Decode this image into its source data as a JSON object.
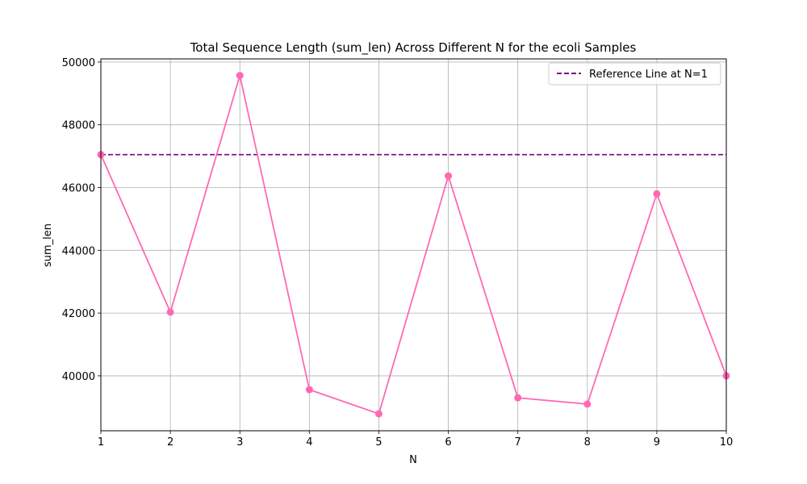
{
  "chart_data": {
    "type": "line",
    "title": "Total Sequence Length (sum_len) Across Different N for the ecoli Samples",
    "xlabel": "N",
    "ylabel": "sum_len",
    "x": [
      1,
      2,
      3,
      4,
      5,
      6,
      7,
      8,
      9,
      10
    ],
    "series": [
      {
        "values": [
          47050,
          42030,
          49570,
          39560,
          38790,
          46370,
          39300,
          39100,
          45800,
          40000
        ],
        "color": "#ff69b4",
        "marker": "circle"
      }
    ],
    "reference_line": {
      "label": "Reference Line at N=1",
      "value": 47050,
      "color": "#800080",
      "style": "dashed"
    },
    "xticks": [
      1,
      2,
      3,
      4,
      5,
      6,
      7,
      8,
      9,
      10
    ],
    "yticks": [
      40000,
      42000,
      44000,
      46000,
      48000,
      50000
    ],
    "xlim": [
      1,
      10
    ],
    "ylim": [
      38250,
      50100
    ],
    "grid": true,
    "legend_position": "top-right"
  }
}
